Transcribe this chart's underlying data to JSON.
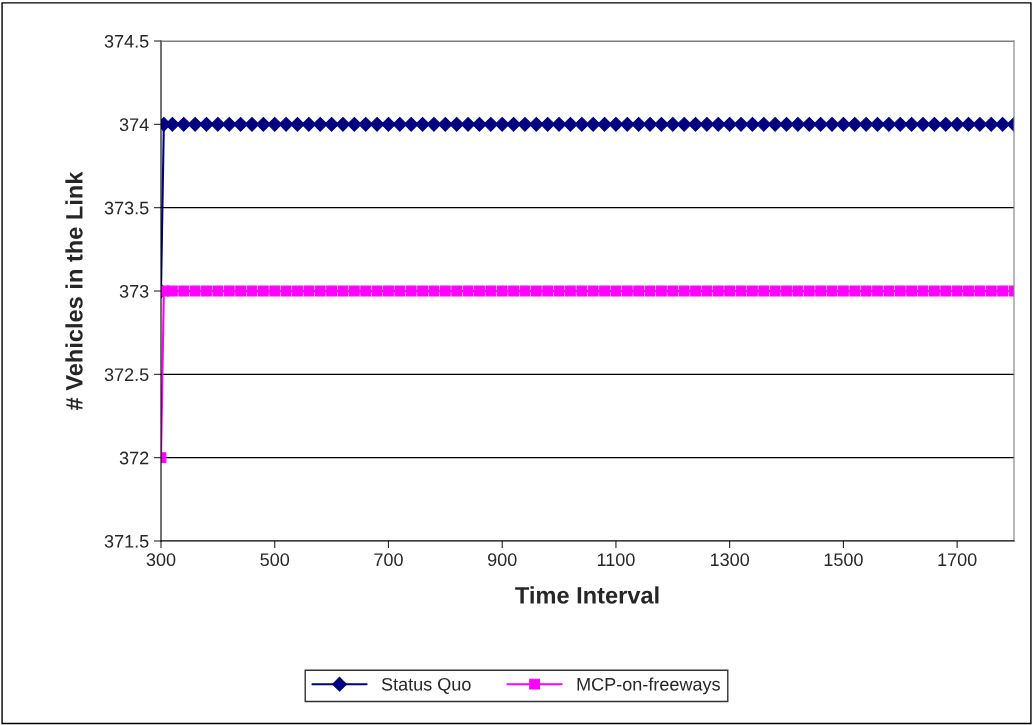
{
  "chart_data": {
    "type": "line",
    "xlabel": "Time Interval",
    "ylabel": "# Vehicles in the Link",
    "x": [
      300,
      305,
      320,
      340,
      360,
      380,
      400,
      420,
      440,
      460,
      480,
      500,
      520,
      540,
      560,
      580,
      600,
      620,
      640,
      660,
      680,
      700,
      720,
      740,
      760,
      780,
      800,
      820,
      840,
      860,
      880,
      900,
      920,
      940,
      960,
      980,
      1000,
      1020,
      1040,
      1060,
      1080,
      1100,
      1120,
      1140,
      1160,
      1180,
      1200,
      1220,
      1240,
      1260,
      1280,
      1300,
      1320,
      1340,
      1360,
      1380,
      1400,
      1420,
      1440,
      1460,
      1480,
      1500,
      1520,
      1540,
      1560,
      1580,
      1600,
      1620,
      1640,
      1660,
      1680,
      1700,
      1720,
      1740,
      1760,
      1780,
      1800
    ],
    "series": [
      {
        "name": "Status Quo",
        "color": "#000080",
        "marker": "diamond",
        "values": [
          373,
          374,
          374,
          374,
          374,
          374,
          374,
          374,
          374,
          374,
          374,
          374,
          374,
          374,
          374,
          374,
          374,
          374,
          374,
          374,
          374,
          374,
          374,
          374,
          374,
          374,
          374,
          374,
          374,
          374,
          374,
          374,
          374,
          374,
          374,
          374,
          374,
          374,
          374,
          374,
          374,
          374,
          374,
          374,
          374,
          374,
          374,
          374,
          374,
          374,
          374,
          374,
          374,
          374,
          374,
          374,
          374,
          374,
          374,
          374,
          374,
          374,
          374,
          374,
          374,
          374,
          374,
          374,
          374,
          374,
          374,
          374,
          374,
          374,
          374,
          374,
          374
        ]
      },
      {
        "name": "MCP-on-freeways",
        "color": "#ff00ff",
        "marker": "square",
        "values": [
          372,
          373,
          373,
          373,
          373,
          373,
          373,
          373,
          373,
          373,
          373,
          373,
          373,
          373,
          373,
          373,
          373,
          373,
          373,
          373,
          373,
          373,
          373,
          373,
          373,
          373,
          373,
          373,
          373,
          373,
          373,
          373,
          373,
          373,
          373,
          373,
          373,
          373,
          373,
          373,
          373,
          373,
          373,
          373,
          373,
          373,
          373,
          373,
          373,
          373,
          373,
          373,
          373,
          373,
          373,
          373,
          373,
          373,
          373,
          373,
          373,
          373,
          373,
          373,
          373,
          373,
          373,
          373,
          373,
          373,
          373,
          373,
          373,
          373,
          373,
          373,
          373
        ]
      }
    ],
    "xlim": [
      300,
      1800
    ],
    "xticks": [
      300,
      500,
      700,
      900,
      1100,
      1300,
      1500,
      1700
    ],
    "ylim": [
      371.5,
      374.5
    ],
    "yticks": [
      371.5,
      372,
      372.5,
      373,
      373.5,
      374,
      374.5
    ],
    "grid": "y",
    "legend": "bottom",
    "line_style": "solid"
  }
}
